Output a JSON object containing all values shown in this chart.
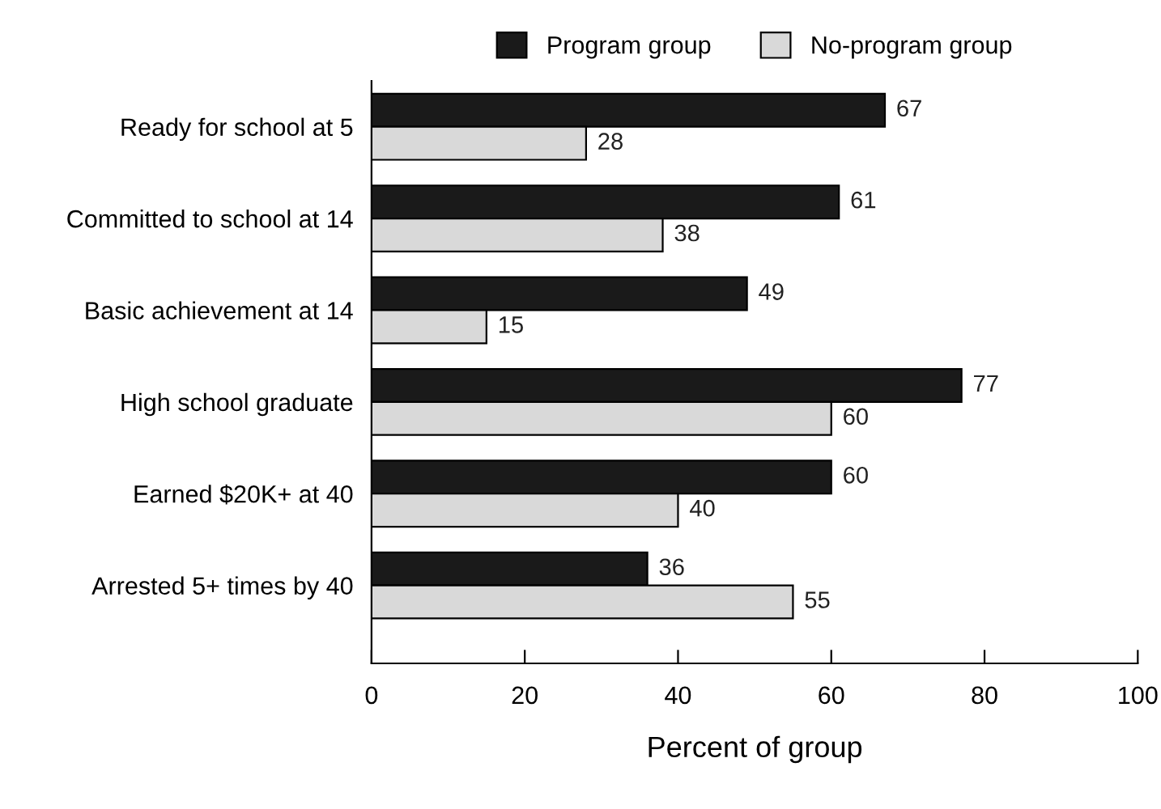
{
  "chart_data": {
    "type": "bar",
    "orientation": "horizontal",
    "xlabel": "Percent of group",
    "categories": [
      "Ready for school at 5",
      "Committed to school at 14",
      "Basic achievement at 14",
      "High school graduate",
      "Earned $20K+ at 40",
      "Arrested 5+ times by 40"
    ],
    "series": [
      {
        "name": "Program group",
        "color": "#1a1a1a",
        "values": [
          67,
          61,
          49,
          77,
          60,
          36
        ]
      },
      {
        "name": "No-program group",
        "color": "#d9d9d9",
        "values": [
          28,
          38,
          15,
          60,
          40,
          55
        ]
      }
    ],
    "xlim": [
      0,
      100
    ],
    "xticks": [
      0,
      20,
      40,
      60,
      80,
      100
    ],
    "data_labels": true,
    "legend": "top",
    "grid": false
  }
}
